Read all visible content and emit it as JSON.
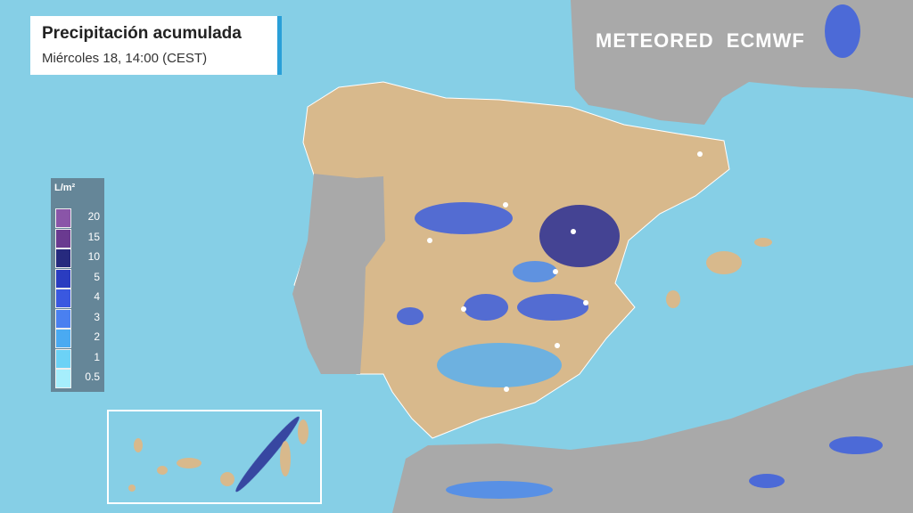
{
  "header": {
    "title": "Precipitación acumulada",
    "subtitle": "Miércoles 18, 14:00 (CEST)"
  },
  "logos": [
    "METEORED",
    "ECMWF"
  ],
  "legend": {
    "unit": "L/m²",
    "items": [
      {
        "label": "20",
        "color": "#8a55a8"
      },
      {
        "label": "15",
        "color": "#6a3a90"
      },
      {
        "label": "10",
        "color": "#262a7e"
      },
      {
        "label": "5",
        "color": "#2a3cc0"
      },
      {
        "label": "4",
        "color": "#3a58e0"
      },
      {
        "label": "3",
        "color": "#4a80f0"
      },
      {
        "label": "2",
        "color": "#4aaaf2"
      },
      {
        "label": "1",
        "color": "#6cd2f6"
      },
      {
        "label": "0.5",
        "color": "#a6eefc"
      }
    ]
  }
}
